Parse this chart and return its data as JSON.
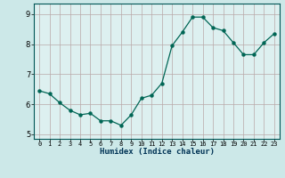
{
  "x": [
    0,
    1,
    2,
    3,
    4,
    5,
    6,
    7,
    8,
    9,
    10,
    11,
    12,
    13,
    14,
    15,
    16,
    17,
    18,
    19,
    20,
    21,
    22,
    23
  ],
  "y": [
    6.45,
    6.35,
    6.05,
    5.8,
    5.65,
    5.7,
    5.45,
    5.45,
    5.3,
    5.65,
    6.2,
    6.3,
    6.7,
    7.95,
    8.4,
    8.9,
    8.9,
    8.55,
    8.45,
    8.05,
    7.65,
    7.65,
    8.05,
    8.35
  ],
  "xlim": [
    -0.5,
    23.5
  ],
  "ylim": [
    4.85,
    9.35
  ],
  "yticks": [
    5,
    6,
    7,
    8,
    9
  ],
  "xticks": [
    0,
    1,
    2,
    3,
    4,
    5,
    6,
    7,
    8,
    9,
    10,
    11,
    12,
    13,
    14,
    15,
    16,
    17,
    18,
    19,
    20,
    21,
    22,
    23
  ],
  "xlabel": "Humidex (Indice chaleur)",
  "line_color": "#006655",
  "bg_color": "#cce8e8",
  "grid_color": "#b8a8a8",
  "plot_bg": "#ddf0f0",
  "title": ""
}
